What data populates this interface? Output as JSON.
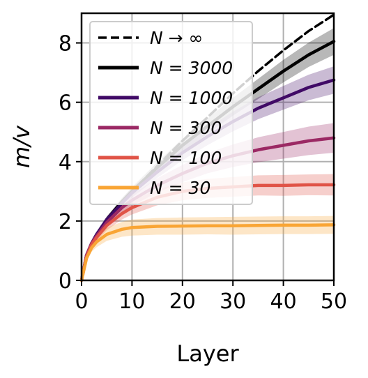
{
  "chart_data": {
    "type": "line",
    "xlabel": "Layer",
    "ylabel": "m/v",
    "xlim": [
      0,
      50
    ],
    "ylim": [
      0,
      9
    ],
    "xticks": [
      0,
      10,
      20,
      30,
      40,
      50
    ],
    "yticks": [
      0,
      2,
      4,
      6,
      8
    ],
    "xtick_labels": [
      "0",
      "10",
      "20",
      "30",
      "40",
      "50"
    ],
    "ytick_labels": [
      "0",
      "2",
      "4",
      "6",
      "8"
    ],
    "grid": true,
    "legend_position": "top-left",
    "series": [
      {
        "name": "N → ∞",
        "color": "#000000",
        "dashed": true,
        "x": [
          0,
          1,
          2,
          3,
          5,
          8,
          10,
          15,
          20,
          25,
          30,
          35,
          40,
          45,
          50
        ],
        "y": [
          0,
          0.85,
          1.25,
          1.55,
          2.05,
          2.65,
          3.0,
          3.85,
          4.7,
          5.5,
          6.3,
          7.05,
          7.75,
          8.4,
          9.0
        ]
      },
      {
        "name": "N = 3000",
        "color": "#000000",
        "x": [
          0,
          1,
          2,
          3,
          5,
          8,
          10,
          15,
          20,
          25,
          30,
          35,
          40,
          45,
          50
        ],
        "y": [
          0,
          0.85,
          1.25,
          1.55,
          2.05,
          2.65,
          3.0,
          3.8,
          4.55,
          5.2,
          5.85,
          6.45,
          7.05,
          7.6,
          8.05
        ],
        "band": [
          0.3,
          0.05,
          0.06,
          0.08,
          0.1,
          0.12,
          0.14,
          0.18,
          0.22,
          0.26,
          0.3,
          0.34,
          0.38,
          0.41,
          0.45
        ]
      },
      {
        "name": "N = 1000",
        "color": "#400a66",
        "x": [
          0,
          1,
          2,
          3,
          5,
          8,
          10,
          15,
          20,
          25,
          30,
          35,
          40,
          45,
          50
        ],
        "y": [
          0,
          0.85,
          1.25,
          1.55,
          2.05,
          2.6,
          2.95,
          3.65,
          4.3,
          4.85,
          5.35,
          5.8,
          6.15,
          6.5,
          6.75
        ],
        "band": [
          0.3,
          0.05,
          0.06,
          0.08,
          0.1,
          0.13,
          0.16,
          0.2,
          0.25,
          0.29,
          0.33,
          0.37,
          0.4,
          0.43,
          0.46
        ]
      },
      {
        "name": "N = 300",
        "color": "#9b2964",
        "x": [
          0,
          1,
          2,
          3,
          5,
          8,
          10,
          15,
          20,
          25,
          30,
          35,
          40,
          45,
          50
        ],
        "y": [
          0,
          0.85,
          1.25,
          1.5,
          1.95,
          2.45,
          2.7,
          3.2,
          3.6,
          3.95,
          4.2,
          4.4,
          4.55,
          4.7,
          4.8
        ],
        "band": [
          0.3,
          0.05,
          0.07,
          0.09,
          0.12,
          0.16,
          0.19,
          0.24,
          0.29,
          0.34,
          0.38,
          0.42,
          0.45,
          0.48,
          0.5
        ]
      },
      {
        "name": "N = 100",
        "color": "#e05447",
        "x": [
          0,
          1,
          2,
          3,
          5,
          8,
          10,
          15,
          20,
          25,
          30,
          35,
          40,
          45,
          50
        ],
        "y": [
          0,
          0.8,
          1.2,
          1.45,
          1.85,
          2.25,
          2.45,
          2.8,
          3.0,
          3.1,
          3.15,
          3.2,
          3.2,
          3.22,
          3.22
        ],
        "band": [
          0.3,
          0.06,
          0.09,
          0.12,
          0.16,
          0.2,
          0.23,
          0.27,
          0.3,
          0.32,
          0.33,
          0.34,
          0.35,
          0.35,
          0.36
        ]
      },
      {
        "name": "N = 30",
        "color": "#f9a535",
        "x": [
          0,
          1,
          2,
          3,
          5,
          8,
          10,
          15,
          20,
          25,
          30,
          35,
          40,
          45,
          50
        ],
        "y": [
          0,
          0.75,
          1.1,
          1.3,
          1.55,
          1.72,
          1.78,
          1.82,
          1.83,
          1.84,
          1.84,
          1.85,
          1.86,
          1.86,
          1.87
        ],
        "band": [
          0.3,
          0.1,
          0.14,
          0.18,
          0.22,
          0.25,
          0.27,
          0.28,
          0.29,
          0.29,
          0.3,
          0.3,
          0.3,
          0.3,
          0.3
        ]
      }
    ]
  }
}
